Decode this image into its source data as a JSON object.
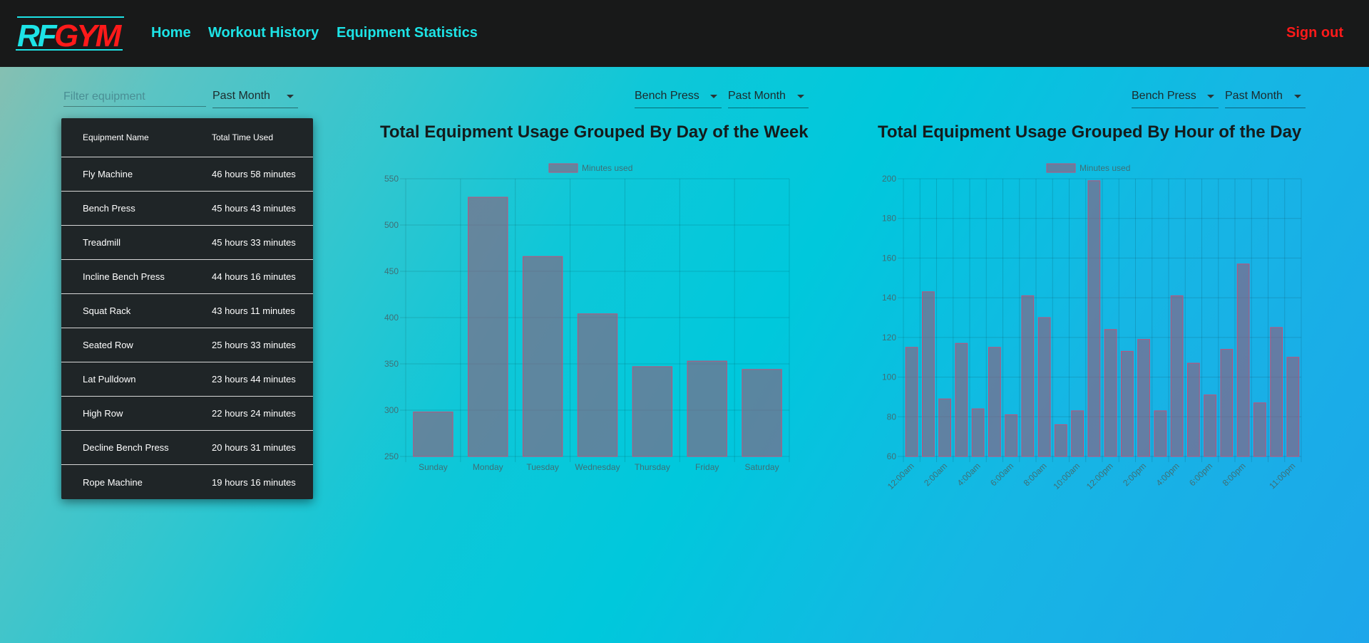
{
  "nav": {
    "logo_text": "RFGYM",
    "links": [
      "Home",
      "Workout History",
      "Equipment Statistics"
    ],
    "signout": "Sign out"
  },
  "colors": {
    "nav_bg": "#181919",
    "link": "#1de3e6",
    "signout": "#ff1a1a",
    "bar_fill": "rgba(150,90,120,0.6)",
    "bar_stroke": "#c0507a"
  },
  "filters": {
    "equipment_placeholder": "Filter equipment",
    "table_period": "Past Month",
    "chart1_equipment": "Bench Press",
    "chart1_period": "Past Month",
    "chart2_equipment": "Bench Press",
    "chart2_period": "Past Month"
  },
  "table": {
    "headers": [
      "Equipment Name",
      "Total Time Used"
    ],
    "rows": [
      [
        "Fly Machine",
        "46 hours 58 minutes"
      ],
      [
        "Bench Press",
        "45 hours 43 minutes"
      ],
      [
        "Treadmill",
        "45 hours 33 minutes"
      ],
      [
        "Incline Bench Press",
        "44 hours 16 minutes"
      ],
      [
        "Squat Rack",
        "43 hours 11 minutes"
      ],
      [
        "Seated Row",
        "25 hours 33 minutes"
      ],
      [
        "Lat Pulldown",
        "23 hours 44 minutes"
      ],
      [
        "High Row",
        "22 hours 24 minutes"
      ],
      [
        "Decline Bench Press",
        "20 hours 31 minutes"
      ],
      [
        "Rope Machine",
        "19 hours 16 minutes"
      ]
    ]
  },
  "chart_data": [
    {
      "type": "bar",
      "title": "Total Equipment Usage Grouped By Day of the Week",
      "legend": "Minutes used",
      "legend_position": "top",
      "grid": true,
      "categories": [
        "Sunday",
        "Monday",
        "Tuesday",
        "Wednesday",
        "Thursday",
        "Friday",
        "Saturday"
      ],
      "values": [
        298,
        530,
        466,
        404,
        347,
        353,
        344
      ],
      "ylim": [
        250,
        550
      ],
      "yticks": [
        250,
        300,
        350,
        400,
        450,
        500,
        550
      ]
    },
    {
      "type": "bar",
      "title": "Total Equipment Usage Grouped By Hour of the Day",
      "legend": "Minutes used",
      "legend_position": "top",
      "grid": true,
      "categories": [
        "12:00am",
        "1:00am",
        "2:00am",
        "3:00am",
        "4:00am",
        "5:00am",
        "6:00am",
        "7:00am",
        "8:00am",
        "9:00am",
        "10:00am",
        "11:00am",
        "12:00pm",
        "1:00pm",
        "2:00pm",
        "3:00pm",
        "4:00pm",
        "5:00pm",
        "6:00pm",
        "7:00pm",
        "8:00pm",
        "9:00pm",
        "10:00pm",
        "11:00pm"
      ],
      "tick_labels": [
        "12:00am",
        "2:00am",
        "4:00am",
        "6:00am",
        "8:00am",
        "10:00am",
        "12:00pm",
        "2:00pm",
        "4:00pm",
        "6:00pm",
        "8:00pm",
        "11:00pm"
      ],
      "values": [
        115,
        143,
        89,
        117,
        84,
        115,
        81,
        141,
        130,
        76,
        83,
        199,
        124,
        113,
        119,
        83,
        141,
        107,
        91,
        114,
        157,
        87,
        125,
        110
      ],
      "ylim": [
        60,
        200
      ],
      "yticks": [
        60,
        80,
        100,
        120,
        140,
        160,
        180,
        200
      ]
    }
  ]
}
